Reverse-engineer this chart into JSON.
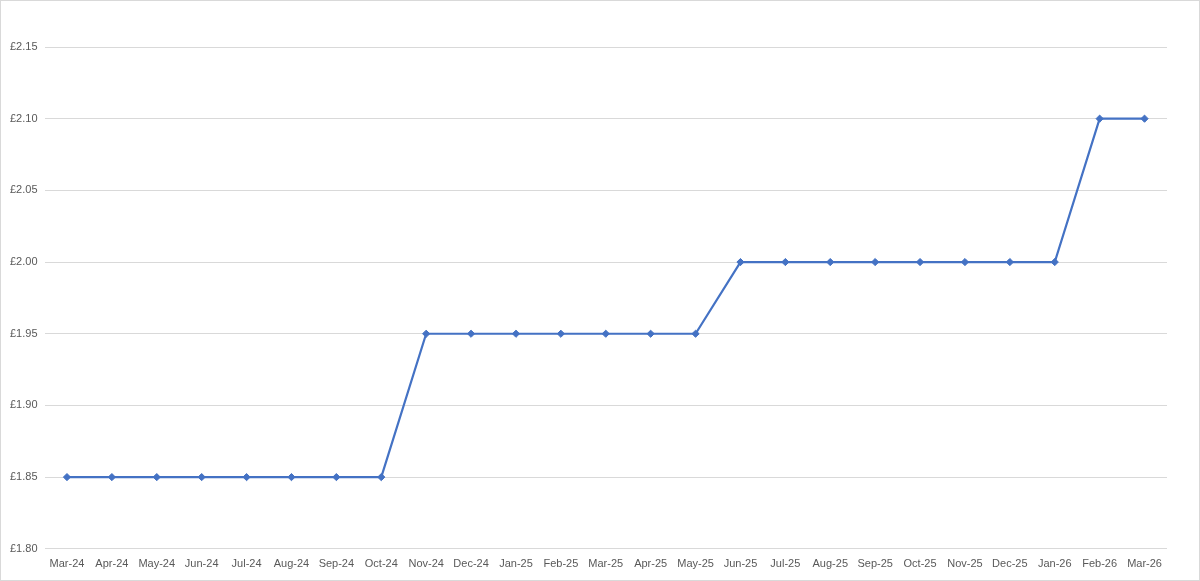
{
  "chart_data": {
    "type": "line",
    "categories": [
      "Mar-24",
      "Apr-24",
      "May-24",
      "Jun-24",
      "Jul-24",
      "Aug-24",
      "Sep-24",
      "Oct-24",
      "Nov-24",
      "Dec-24",
      "Jan-25",
      "Feb-25",
      "Mar-25",
      "Apr-25",
      "May-25",
      "Jun-25",
      "Jul-25",
      "Aug-25",
      "Sep-25",
      "Oct-25",
      "Nov-25",
      "Dec-25",
      "Jan-26",
      "Feb-26",
      "Mar-26"
    ],
    "values": [
      1.85,
      1.85,
      1.85,
      1.85,
      1.85,
      1.85,
      1.85,
      1.85,
      1.95,
      1.95,
      1.95,
      1.95,
      1.95,
      1.95,
      1.95,
      2.0,
      2.0,
      2.0,
      2.0,
      2.0,
      2.0,
      2.0,
      2.0,
      2.1,
      2.1
    ],
    "color": "#4472c4",
    "ylim": [
      1.8,
      2.15
    ],
    "yticks": [
      {
        "value": 1.8,
        "label": "£1.80"
      },
      {
        "value": 1.85,
        "label": "£1.85"
      },
      {
        "value": 1.9,
        "label": "£1.90"
      },
      {
        "value": 1.95,
        "label": "£1.95"
      },
      {
        "value": 2.0,
        "label": "£2.00"
      },
      {
        "value": 2.05,
        "label": "£2.05"
      },
      {
        "value": 2.1,
        "label": "£2.10"
      },
      {
        "value": 2.15,
        "label": "£2.15"
      }
    ],
    "grid": "y",
    "marker": "diamond",
    "line_style": "solid"
  }
}
